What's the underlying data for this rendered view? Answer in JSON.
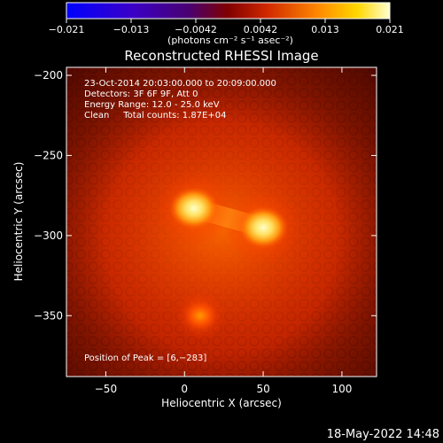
{
  "chart_data": {
    "type": "heatmap",
    "title": "Reconstructed RHESSI Image",
    "xlabel": "Heliocentric X (arcsec)",
    "ylabel": "Heliocentric Y (arcsec)",
    "xlim": [
      -75,
      122
    ],
    "ylim": [
      -388,
      -195
    ],
    "x_ticks": [
      -50,
      0,
      50,
      100
    ],
    "y_ticks": [
      -200,
      -250,
      -300,
      -350
    ],
    "x_tick_labels": [
      "−50",
      "0",
      "50",
      "100"
    ],
    "y_tick_labels": [
      "−200",
      "−250",
      "−300",
      "−350"
    ],
    "colorbar": {
      "range": [
        -0.021,
        0.021
      ],
      "tick_labels": [
        "−0.021",
        "−0.013",
        "−0.0042",
        "0.0042",
        "0.013",
        "0.021"
      ],
      "unit_label": "(photons cm⁻² s⁻¹ asec⁻²)"
    },
    "annotations": [
      "23-Oct-2014 20:03:00.000 to 20:09:00.000",
      "Detectors: 3F 6F 9F, Att 0",
      "Energy Range: 12.0 - 25.0 keV",
      "Clean     Total counts: 1.87E+04"
    ],
    "peak_label": "Position of Peak = [6,−283]",
    "sources": [
      {
        "x": 6,
        "y": -283,
        "intensity": 1.0
      },
      {
        "x": 50,
        "y": -295,
        "intensity": 0.95
      },
      {
        "x": 10,
        "y": -350,
        "intensity": 0.45
      }
    ]
  },
  "footer": {
    "timestamp": "18-May-2022 14:48"
  },
  "colors": {
    "background": "#000000",
    "map_base": "#b31e00",
    "hot": "#ffffc0",
    "cold": "#0000ff"
  }
}
